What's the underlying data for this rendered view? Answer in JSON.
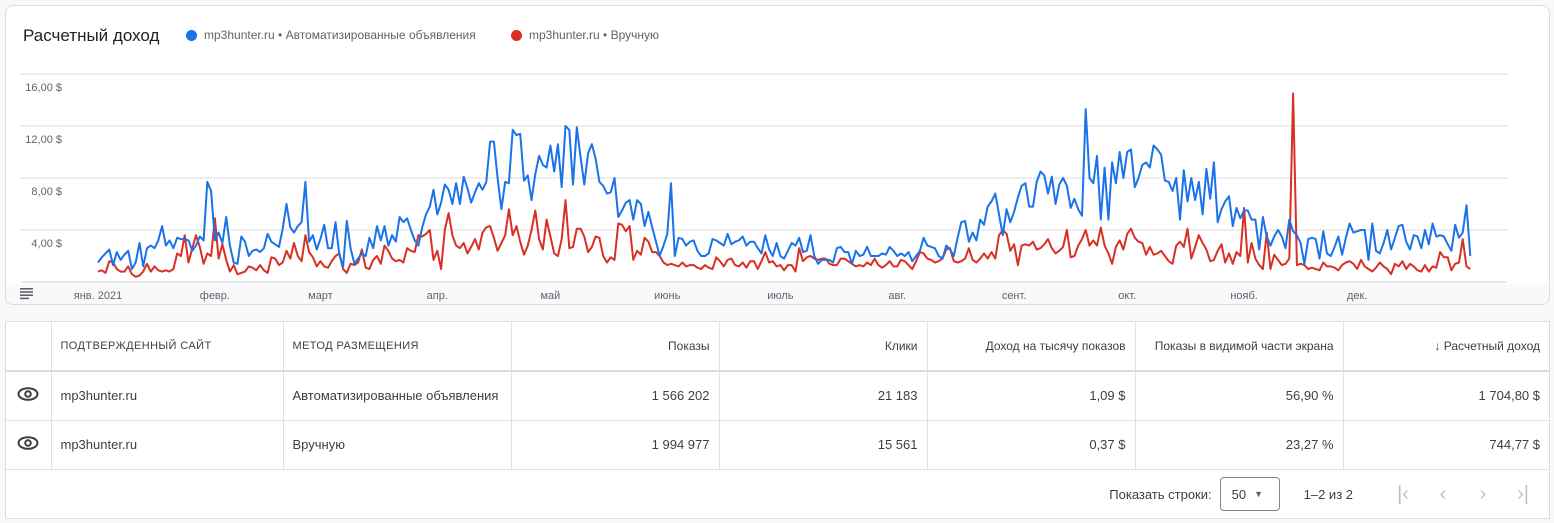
{
  "chart": {
    "title": "Расчетный доход",
    "legend": [
      {
        "label": "mp3hunter.ru • Автоматизированные объявления",
        "color": "#1a73e8"
      },
      {
        "label": "mp3hunter.ru • Вручную",
        "color": "#d93025"
      }
    ],
    "menu_icon": "menu-lines-icon"
  },
  "chart_data": {
    "type": "line",
    "x_range": [
      "2021-01-01",
      "2021-12-31"
    ],
    "x_tick_labels": [
      "янв. 2021",
      "февр.",
      "март",
      "апр.",
      "май",
      "июнь",
      "июль",
      "авг.",
      "сент.",
      "окт.",
      "нояб.",
      "дек."
    ],
    "y_tick_labels": [
      "4,00 $",
      "8,00 $",
      "12,00 $",
      "16,00 $"
    ],
    "y_ticks": [
      4,
      8,
      12,
      16
    ],
    "ylim": [
      0,
      16
    ],
    "grid": true,
    "legend_position": "top",
    "series": [
      {
        "name": "mp3hunter.ru • Автоматизированные объявления",
        "color": "#1a73e8",
        "values": [
          1.5,
          1.9,
          2.2,
          2.5,
          1.3,
          2.3,
          1.7,
          2.1,
          2.4,
          1.0,
          1.5,
          3.0,
          1.2,
          2.6,
          2.8,
          2.6,
          3.2,
          4.3,
          2.8,
          3.2,
          2.6,
          3.4,
          3.3,
          3.3,
          3.2,
          2.4,
          2.8,
          3.5,
          3.2,
          7.7,
          7.0,
          3.2,
          3.8,
          3.0,
          5.0,
          2.8,
          1.5,
          1.4,
          3.5,
          3.1,
          2.0,
          2.4,
          2.5,
          2.3,
          2.6,
          3.7,
          3.1,
          2.9,
          2.7,
          4.1,
          6.0,
          4.2,
          3.8,
          4.3,
          4.6,
          7.7,
          3.1,
          3.6,
          2.5,
          3.3,
          4.4,
          2.6,
          2.6,
          4.6,
          2.1,
          1.2,
          4.7,
          2.6,
          1.4,
          1.8,
          2.2,
          2.0,
          3.4,
          2.6,
          4.3,
          3.2,
          4.3,
          2.8,
          3.6,
          3.1,
          5.0,
          4.6,
          4.9,
          4.0,
          3.2,
          2.8,
          4.2,
          5.2,
          5.8,
          7.1,
          5.2,
          6.1,
          7.5,
          7.1,
          6.0,
          7.6,
          6.0,
          8.1,
          7.2,
          6.1,
          6.9,
          7.6,
          7.1,
          7.7,
          10.8,
          10.8,
          8.0,
          5.6,
          7.7,
          7.6,
          11.7,
          11.3,
          11.4,
          7.8,
          8.2,
          6.3,
          8.3,
          9.7,
          9.0,
          8.8,
          10.5,
          8.5,
          10.6,
          7.3,
          12.0,
          11.7,
          7.5,
          11.9,
          9.6,
          7.5,
          9.9,
          10.6,
          9.5,
          7.7,
          7.4,
          6.8,
          6.9,
          8.0,
          5.0,
          5.5,
          6.1,
          6.3,
          4.8,
          6.3,
          6.0,
          4.3,
          5.4,
          4.2,
          3.1,
          2.0,
          2.8,
          3.7,
          7.6,
          2.0,
          3.4,
          3.3,
          2.8,
          3.1,
          3.2,
          2.4,
          2.0,
          2.0,
          2.2,
          3.3,
          3.2,
          3.0,
          2.8,
          3.7,
          2.9,
          3.1,
          3.2,
          3.5,
          2.8,
          3.1,
          3.1,
          2.6,
          2.2,
          3.6,
          2.5,
          2.0,
          3.0,
          2.0,
          1.8,
          2.4,
          3.0,
          2.8,
          3.4,
          2.3,
          2.4,
          3.6,
          2.0,
          1.4,
          1.7,
          1.7,
          1.7,
          1.5,
          2.6,
          2.7,
          2.3,
          2.3,
          1.4,
          2.4,
          2.0,
          2.1,
          2.7,
          2.0,
          2.0,
          2.0,
          2.2,
          2.1,
          2.7,
          2.4,
          2.0,
          2.2,
          2.0,
          2.3,
          1.6,
          2.0,
          2.4,
          3.4,
          2.8,
          2.7,
          2.6,
          2.0,
          1.8,
          2.8,
          2.5,
          2.0,
          3.4,
          4.6,
          4.7,
          3.1,
          3.8,
          3.2,
          4.8,
          4.4,
          5.8,
          6.2,
          6.8,
          5.2,
          3.6,
          5.6,
          4.6,
          5.4,
          6.5,
          7.4,
          7.6,
          5.8,
          5.8,
          7.7,
          8.5,
          8.2,
          6.8,
          8.1,
          6.0,
          7.5,
          8.0,
          7.4,
          5.7,
          6.4,
          5.6,
          5.1,
          13.3,
          8.0,
          7.6,
          9.7,
          4.8,
          8.8,
          4.8,
          9.2,
          7.6,
          10.0,
          8.0,
          10.0,
          10.2,
          7.3,
          8.0,
          9.0,
          9.2,
          8.8,
          10.5,
          10.2,
          9.8,
          7.8,
          7.7,
          7.0,
          8.0,
          4.8,
          8.6,
          6.2,
          8.0,
          6.3,
          7.7,
          5.2,
          8.7,
          6.4,
          9.2,
          4.6,
          5.6,
          6.2,
          6.6,
          4.3,
          5.7,
          4.9,
          5.5,
          5.5,
          4.8,
          4.8,
          2.5,
          5.0,
          3.5,
          2.8,
          3.5,
          4.0,
          3.5,
          2.6,
          4.8,
          3.9,
          3.6,
          3.0,
          1.4,
          3.3,
          3.4,
          3.3,
          1.8,
          3.9,
          2.2,
          2.0,
          2.7,
          3.5,
          2.1,
          3.4,
          4.5,
          3.8,
          3.9,
          4.0,
          4.0,
          1.7,
          4.5,
          2.4,
          2.2,
          3.0,
          4.0,
          2.5,
          3.4,
          4.3,
          4.4,
          3.1,
          2.5,
          3.6,
          3.5,
          2.6,
          4.0,
          2.9,
          4.5,
          3.5,
          3.6,
          3.5,
          2.9,
          2.4,
          4.4,
          3.4,
          3.8,
          5.9,
          2.0
        ]
      },
      {
        "name": "mp3hunter.ru • Вручную",
        "color": "#d93025",
        "values": [
          0.8,
          0.9,
          0.7,
          1.6,
          1.5,
          1.0,
          0.8,
          0.8,
          1.2,
          0.6,
          0.4,
          0.5,
          0.8,
          1.4,
          0.8,
          1.2,
          0.9,
          0.8,
          0.9,
          0.8,
          1.0,
          2.2,
          2.0,
          3.6,
          1.5,
          2.6,
          3.6,
          2.7,
          1.4,
          2.2,
          2.0,
          4.9,
          1.8,
          2.9,
          1.7,
          0.8,
          1.3,
          0.6,
          0.7,
          0.8,
          1.2,
          1.1,
          0.9,
          1.3,
          0.9,
          0.7,
          1.9,
          1.8,
          1.3,
          1.5,
          2.4,
          1.8,
          3.0,
          2.0,
          1.6,
          3.6,
          2.3,
          1.9,
          1.2,
          1.6,
          1.2,
          1.1,
          1.6,
          2.0,
          2.2,
          1.0,
          0.7,
          1.4,
          1.3,
          1.5,
          2.5,
          1.1,
          1.0,
          1.7,
          2.0,
          1.4,
          2.8,
          2.4,
          1.8,
          1.6,
          1.7,
          1.5,
          2.6,
          2.4,
          2.3,
          3.6,
          3.5,
          3.7,
          4.0,
          1.7,
          2.4,
          1.0,
          4.0,
          5.3,
          3.6,
          2.8,
          2.6,
          3.0,
          2.2,
          2.7,
          3.3,
          2.5,
          3.8,
          4.2,
          4.3,
          3.4,
          2.4,
          3.0,
          3.6,
          5.6,
          3.6,
          4.3,
          3.1,
          2.1,
          2.8,
          4.0,
          5.5,
          3.3,
          2.5,
          4.8,
          3.5,
          2.2,
          2.0,
          3.3,
          6.3,
          2.6,
          2.7,
          4.1,
          4.1,
          3.5,
          2.3,
          2.7,
          3.5,
          3.4,
          2.0,
          1.5,
          1.9,
          1.7,
          4.5,
          4.4,
          3.9,
          4.3,
          1.7,
          2.4,
          2.1,
          3.4,
          3.1,
          2.3,
          2.3,
          2.0,
          1.5,
          1.3,
          1.4,
          1.3,
          1.2,
          1.5,
          1.2,
          1.3,
          1.3,
          1.1,
          1.0,
          1.3,
          1.1,
          1.0,
          1.9,
          1.6,
          1.2,
          1.7,
          1.8,
          1.3,
          1.2,
          1.5,
          1.1,
          1.6,
          1.6,
          1.0,
          1.6,
          2.3,
          1.5,
          1.6,
          1.2,
          1.3,
          0.9,
          1.3,
          1.3,
          0.8,
          2.6,
          1.6,
          1.9,
          2.0,
          1.8,
          1.7,
          1.8,
          1.8,
          1.4,
          1.3,
          1.3,
          1.8,
          1.8,
          1.6,
          1.4,
          1.2,
          1.3,
          1.2,
          1.5,
          1.3,
          1.8,
          1.3,
          1.1,
          1.3,
          1.6,
          1.2,
          1.2,
          1.7,
          1.6,
          1.3,
          1.0,
          1.6,
          2.3,
          2.2,
          1.8,
          1.7,
          1.5,
          1.6,
          1.8,
          2.5,
          2.6,
          1.6,
          1.5,
          1.6,
          1.8,
          2.6,
          1.7,
          1.5,
          1.8,
          2.2,
          1.8,
          2.3,
          1.8,
          3.6,
          4.0,
          3.7,
          2.4,
          2.9,
          1.3,
          2.8,
          2.9,
          2.8,
          3.1,
          2.5,
          2.6,
          2.9,
          3.3,
          2.6,
          2.2,
          2.4,
          2.7,
          4.0,
          1.9,
          2.0,
          2.8,
          3.3,
          4.0,
          2.8,
          3.2,
          2.8,
          4.2,
          2.8,
          2.2,
          1.4,
          2.7,
          3.2,
          2.5,
          3.7,
          4.1,
          3.4,
          3.1,
          3.0,
          2.1,
          2.7,
          2.1,
          2.2,
          2.4,
          2.0,
          1.6,
          1.4,
          2.8,
          3.1,
          2.7,
          4.1,
          1.8,
          2.7,
          3.6,
          3.0,
          2.5,
          1.6,
          1.7,
          2.4,
          2.9,
          1.5,
          2.2,
          1.4,
          2.3,
          2.0,
          5.7,
          1.5,
          3.0,
          1.8,
          1.3,
          1.0,
          3.8,
          1.0,
          2.1,
          1.7,
          1.3,
          1.4,
          1.8,
          14.5,
          1.3,
          1.4,
          1.3,
          1.0,
          1.1,
          1.0,
          0.9,
          1.5,
          1.2,
          1.2,
          1.1,
          0.9,
          1.3,
          1.5,
          1.6,
          1.4,
          1.0,
          1.7,
          1.2,
          1.0,
          0.8,
          1.1,
          1.5,
          1.2,
          1.0,
          0.6,
          1.4,
          1.2,
          1.6,
          1.0,
          1.4,
          1.2,
          0.9,
          0.8,
          1.3,
          0.8,
          1.2,
          1.1,
          2.3,
          1.9,
          1.9,
          0.9,
          1.4,
          1.5,
          3.3,
          1.2,
          1.0
        ]
      }
    ]
  },
  "table": {
    "headers": [
      "Подтвержденный сайт",
      "Метод размещения",
      "Показы",
      "Клики",
      "Доход на тысячу показов",
      "Показы в видимой части экрана",
      "Расчетный доход"
    ],
    "sort_icon": "arrow-down-icon",
    "rows": [
      {
        "site": "mp3hunter.ru",
        "method": "Автоматизированные объявления",
        "impressions": "1 566 202",
        "clicks": "21 183",
        "rpm": "1,09 $",
        "viewable": "56,90 %",
        "revenue": "1 704,80 $"
      },
      {
        "site": "mp3hunter.ru",
        "method": "Вручную",
        "impressions": "1 994 977",
        "clicks": "15 561",
        "rpm": "0,37 $",
        "viewable": "23,27 %",
        "revenue": "744,77 $"
      }
    ]
  },
  "pagination": {
    "rows_label": "Показать строки:",
    "rows_value": "50",
    "range": "1–2 из 2"
  }
}
